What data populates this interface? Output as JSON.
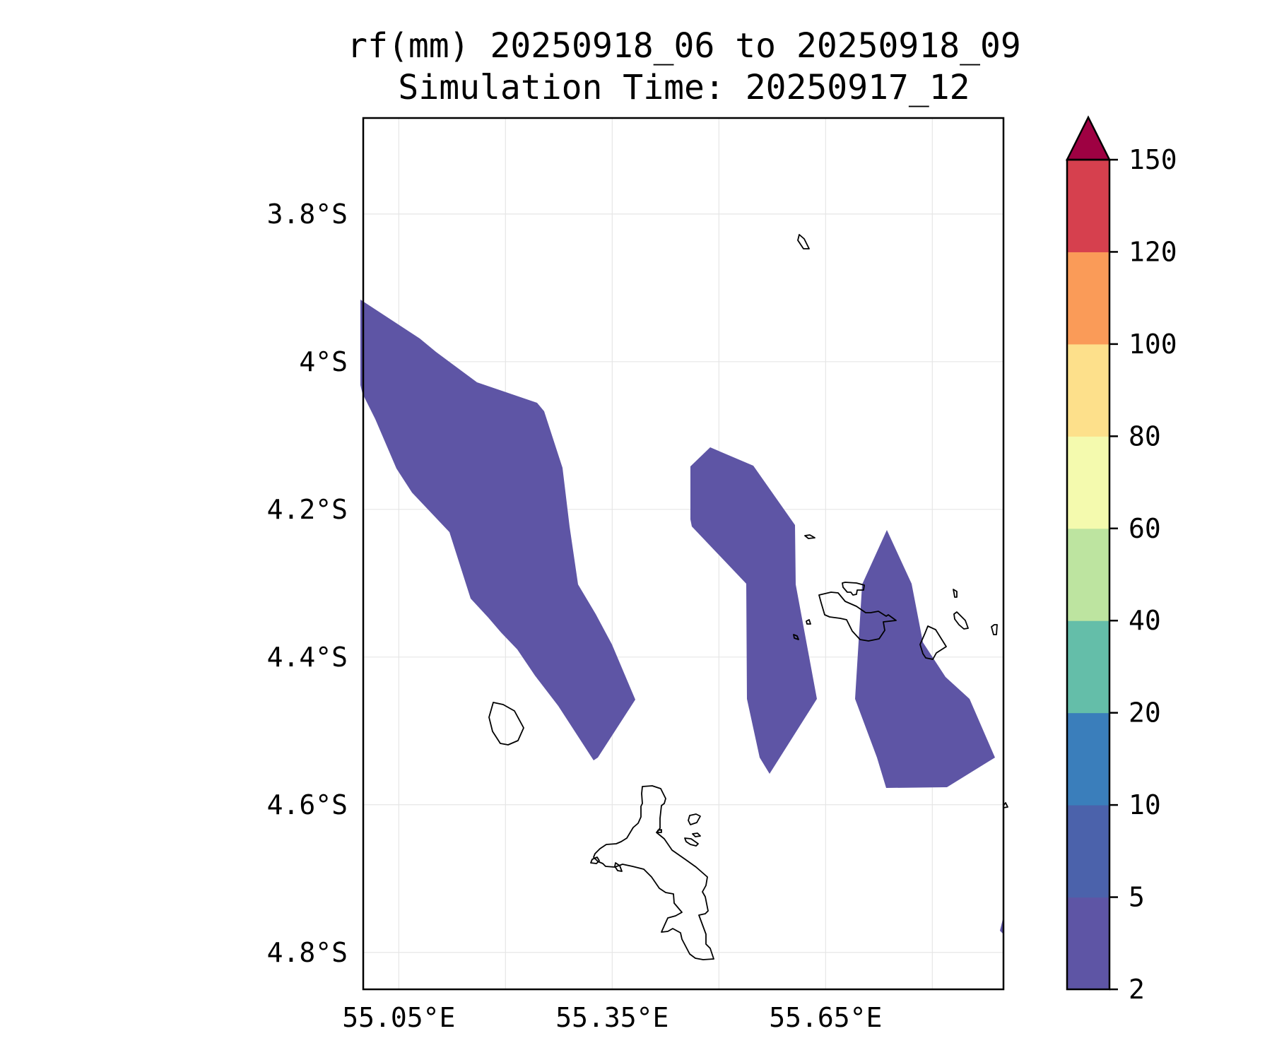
{
  "title": {
    "line1": "rf(mm) 20250918_06 to 20250918_09",
    "line2": "Simulation Time: 20250917_12"
  },
  "map": {
    "lon_range": [
      55.0,
      55.9
    ],
    "lat_range": [
      -4.85,
      -3.67
    ],
    "grid": true,
    "lat_ticks": [
      {
        "value": -3.8,
        "label": "3.8°S"
      },
      {
        "value": -4.0,
        "label": "4°S"
      },
      {
        "value": -4.2,
        "label": "4.2°S"
      },
      {
        "value": -4.4,
        "label": "4.4°S"
      },
      {
        "value": -4.6,
        "label": "4.6°S"
      },
      {
        "value": -4.8,
        "label": "4.8°S"
      }
    ],
    "lon_ticks": [
      {
        "value": 55.05,
        "label": "55.05°E"
      },
      {
        "value": 55.35,
        "label": "55.35°E"
      },
      {
        "value": 55.65,
        "label": "55.65°E"
      }
    ],
    "lon_grid_values": [
      55.05,
      55.2,
      55.35,
      55.5,
      55.65,
      55.8
    ],
    "rain_color": "#5e55a5"
  },
  "colorbar": {
    "levels": [
      "2",
      "5",
      "10",
      "20",
      "40",
      "60",
      "80",
      "100",
      "120",
      "150"
    ],
    "colors": [
      "#5e55a5",
      "#4b62ab",
      "#3a7ebb",
      "#64bea9",
      "#bde4a0",
      "#f4faae",
      "#fde08b",
      "#fa9b58",
      "#d6404e"
    ],
    "extend_color": "#9e0142",
    "extend": "max"
  }
}
